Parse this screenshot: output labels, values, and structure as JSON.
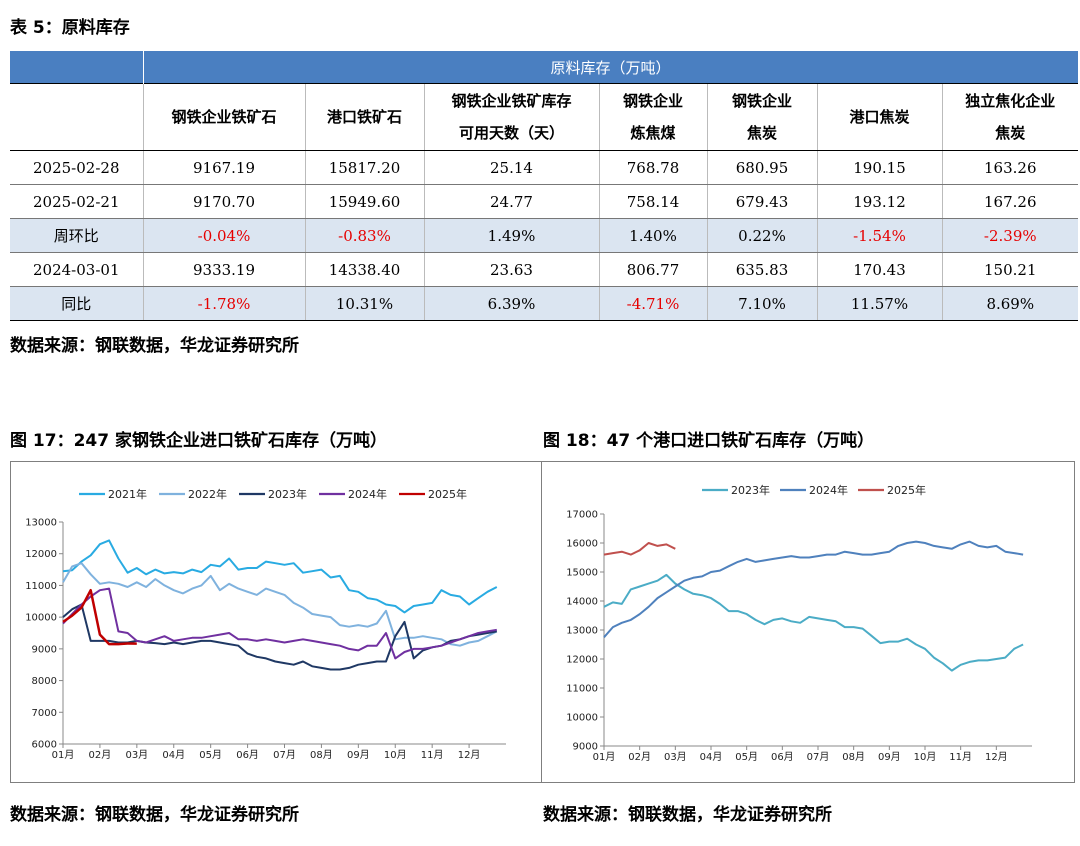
{
  "table_caption": "表 5：原料库存",
  "table": {
    "group_header": "原料库存（万吨）",
    "columns": [
      [
        "钢铁企业铁矿石"
      ],
      [
        "港口铁矿石"
      ],
      [
        "钢铁企业铁矿库存",
        "可用天数（天）"
      ],
      [
        "钢铁企业",
        "炼焦煤"
      ],
      [
        "钢铁企业",
        "焦炭"
      ],
      [
        "港口焦炭"
      ],
      [
        "独立焦化企业",
        "焦炭"
      ]
    ],
    "rows": [
      {
        "label": "2025-02-28",
        "shade": false,
        "values": [
          "9167.19",
          "15817.20",
          "25.14",
          "768.78",
          "680.95",
          "190.15",
          "163.26"
        ]
      },
      {
        "label": "2025-02-21",
        "shade": false,
        "values": [
          "9170.70",
          "15949.60",
          "24.77",
          "758.14",
          "679.43",
          "193.12",
          "167.26"
        ]
      },
      {
        "label": "周环比",
        "shade": true,
        "values": [
          "-0.04%",
          "-0.83%",
          "1.49%",
          "1.40%",
          "0.22%",
          "-1.54%",
          "-2.39%"
        ]
      },
      {
        "label": "2024-03-01",
        "shade": false,
        "values": [
          "9333.19",
          "14338.40",
          "23.63",
          "806.77",
          "635.83",
          "170.43",
          "150.21"
        ]
      },
      {
        "label": "同比",
        "shade": true,
        "values": [
          "-1.78%",
          "10.31%",
          "6.39%",
          "-4.71%",
          "7.10%",
          "11.57%",
          "8.69%"
        ]
      }
    ]
  },
  "table_source": "数据来源：钢联数据，华龙证券研究所",
  "figure17": {
    "caption": "图 17：247 家钢铁企业进口铁矿石库存（万吨）",
    "source": "数据来源：钢联数据，华龙证券研究所"
  },
  "figure18": {
    "caption": "图 18：47 个港口进口铁矿石库存（万吨）",
    "source": "数据来源：钢联数据，华龙证券研究所"
  },
  "chart_data": [
    {
      "type": "line",
      "title": "",
      "xlabel": "",
      "ylabel": "",
      "ylim": [
        6000,
        13000
      ],
      "yticks": [
        6000,
        7000,
        8000,
        9000,
        10000,
        11000,
        12000,
        13000
      ],
      "xticks": [
        "01月",
        "02月",
        "03月",
        "04月",
        "05月",
        "06月",
        "07月",
        "08月",
        "09月",
        "10月",
        "11月",
        "12月"
      ],
      "xrange": [
        0,
        12
      ],
      "grid": false,
      "legend_position": "top",
      "series": [
        {
          "name": "2021年",
          "color": "#29abe2",
          "width": 2,
          "x": [
            0,
            0.25,
            0.5,
            0.75,
            1,
            1.25,
            1.5,
            1.75,
            2,
            2.25,
            2.5,
            2.75,
            3,
            3.25,
            3.5,
            3.75,
            4,
            4.25,
            4.5,
            4.75,
            5,
            5.25,
            5.5,
            5.75,
            6,
            6.25,
            6.5,
            6.75,
            7,
            7.25,
            7.5,
            7.75,
            8,
            8.25,
            8.5,
            8.75,
            9,
            9.25,
            9.5,
            9.75,
            10,
            10.25,
            10.5,
            10.75,
            11,
            11.25,
            11.5,
            11.75
          ],
          "y": [
            11450,
            11480,
            11750,
            11950,
            12300,
            12420,
            11850,
            11400,
            11550,
            11350,
            11500,
            11380,
            11420,
            11380,
            11500,
            11420,
            11650,
            11600,
            11850,
            11500,
            11550,
            11550,
            11750,
            11700,
            11650,
            11700,
            11400,
            11450,
            11500,
            11250,
            11300,
            10850,
            10800,
            10600,
            10550,
            10400,
            10350,
            10150,
            10350,
            10400,
            10450,
            10850,
            10700,
            10650,
            10400,
            10600,
            10800,
            10950
          ]
        },
        {
          "name": "2022年",
          "color": "#7fb2de",
          "width": 2,
          "x": [
            0,
            0.25,
            0.5,
            0.75,
            1,
            1.25,
            1.5,
            1.75,
            2,
            2.25,
            2.5,
            2.75,
            3,
            3.25,
            3.5,
            3.75,
            4,
            4.25,
            4.5,
            4.75,
            5,
            5.25,
            5.5,
            5.75,
            6,
            6.25,
            6.5,
            6.75,
            7,
            7.25,
            7.5,
            7.75,
            8,
            8.25,
            8.5,
            8.75,
            9,
            9.25,
            9.5,
            9.75,
            10,
            10.25,
            10.5,
            10.75,
            11,
            11.25,
            11.5,
            11.75
          ],
          "y": [
            11100,
            11600,
            11700,
            11350,
            11050,
            11100,
            11050,
            10950,
            11100,
            10950,
            11200,
            11000,
            10850,
            10750,
            10900,
            11000,
            11300,
            10850,
            11050,
            10900,
            10800,
            10700,
            10900,
            10800,
            10700,
            10450,
            10300,
            10100,
            10050,
            10000,
            9750,
            9700,
            9750,
            9700,
            9800,
            10200,
            9300,
            9350,
            9350,
            9400,
            9350,
            9300,
            9150,
            9100,
            9200,
            9250,
            9400,
            9550
          ]
        },
        {
          "name": "2023年",
          "color": "#1f3864",
          "width": 2,
          "x": [
            0,
            0.25,
            0.5,
            0.75,
            1,
            1.25,
            1.5,
            1.75,
            2,
            2.25,
            2.5,
            2.75,
            3,
            3.25,
            3.5,
            3.75,
            4,
            4.25,
            4.5,
            4.75,
            5,
            5.25,
            5.5,
            5.75,
            6,
            6.25,
            6.5,
            6.75,
            7,
            7.25,
            7.5,
            7.75,
            8,
            8.25,
            8.5,
            8.75,
            9,
            9.25,
            9.5,
            9.75,
            10,
            10.25,
            10.5,
            10.75,
            11,
            11.25,
            11.5,
            11.75
          ],
          "y": [
            10000,
            10250,
            10400,
            9250,
            9250,
            9250,
            9200,
            9200,
            9250,
            9200,
            9180,
            9150,
            9200,
            9150,
            9200,
            9250,
            9250,
            9200,
            9150,
            9100,
            8850,
            8750,
            8700,
            8600,
            8550,
            8500,
            8600,
            8450,
            8400,
            8350,
            8350,
            8400,
            8500,
            8550,
            8600,
            8600,
            9400,
            9850,
            8700,
            8950,
            9050,
            9100,
            9250,
            9300,
            9400,
            9450,
            9500,
            9550
          ]
        },
        {
          "name": "2024年",
          "color": "#7030a0",
          "width": 2,
          "x": [
            0,
            0.25,
            0.5,
            0.75,
            1,
            1.25,
            1.5,
            1.75,
            2,
            2.25,
            2.5,
            2.75,
            3,
            3.25,
            3.5,
            3.75,
            4,
            4.25,
            4.5,
            4.75,
            5,
            5.25,
            5.5,
            5.75,
            6,
            6.25,
            6.5,
            6.75,
            7,
            7.25,
            7.5,
            7.75,
            8,
            8.25,
            8.5,
            8.75,
            9,
            9.25,
            9.5,
            9.75,
            10,
            10.25,
            10.5,
            10.75,
            11,
            11.25,
            11.5,
            11.75
          ],
          "y": [
            9800,
            10100,
            10400,
            10650,
            10850,
            10900,
            9550,
            9500,
            9250,
            9200,
            9300,
            9400,
            9250,
            9300,
            9350,
            9350,
            9400,
            9450,
            9500,
            9300,
            9300,
            9250,
            9300,
            9250,
            9200,
            9250,
            9300,
            9250,
            9200,
            9150,
            9100,
            9000,
            8950,
            9100,
            9100,
            9500,
            8700,
            8900,
            9000,
            9000,
            9050,
            9100,
            9200,
            9300,
            9400,
            9500,
            9550,
            9600
          ]
        },
        {
          "name": "2025年",
          "color": "#c00000",
          "width": 2.5,
          "x": [
            0,
            0.25,
            0.5,
            0.75,
            1,
            1.25,
            1.5,
            1.75,
            2
          ],
          "y": [
            9850,
            10050,
            10300,
            10850,
            9450,
            9150,
            9150,
            9170,
            9167
          ]
        }
      ]
    },
    {
      "type": "line",
      "title": "",
      "xlabel": "",
      "ylabel": "",
      "ylim": [
        9000,
        17000
      ],
      "yticks": [
        9000,
        10000,
        11000,
        12000,
        13000,
        14000,
        15000,
        16000,
        17000
      ],
      "xticks": [
        "01月",
        "02月",
        "03月",
        "04月",
        "05月",
        "06月",
        "07月",
        "08月",
        "09月",
        "10月",
        "11月",
        "12月"
      ],
      "xrange": [
        0,
        12
      ],
      "grid": false,
      "legend_position": "top",
      "series": [
        {
          "name": "2023年",
          "color": "#4bacc6",
          "width": 2,
          "x": [
            0,
            0.25,
            0.5,
            0.75,
            1,
            1.25,
            1.5,
            1.75,
            2,
            2.25,
            2.5,
            2.75,
            3,
            3.25,
            3.5,
            3.75,
            4,
            4.25,
            4.5,
            4.75,
            5,
            5.25,
            5.5,
            5.75,
            6,
            6.25,
            6.5,
            6.75,
            7,
            7.25,
            7.5,
            7.75,
            8,
            8.25,
            8.5,
            8.75,
            9,
            9.25,
            9.5,
            9.75,
            10,
            10.25,
            10.5,
            10.75,
            11,
            11.25,
            11.5,
            11.75
          ],
          "y": [
            13800,
            13950,
            13900,
            14400,
            14500,
            14600,
            14700,
            14900,
            14600,
            14400,
            14250,
            14200,
            14100,
            13900,
            13650,
            13650,
            13550,
            13350,
            13200,
            13350,
            13400,
            13300,
            13250,
            13450,
            13400,
            13350,
            13300,
            13100,
            13100,
            13050,
            12800,
            12550,
            12600,
            12600,
            12700,
            12500,
            12350,
            12050,
            11850,
            11600,
            11800,
            11900,
            11950,
            11950,
            12000,
            12050,
            12350,
            12500
          ]
        },
        {
          "name": "2024年",
          "color": "#4f81bd",
          "width": 2,
          "x": [
            0,
            0.25,
            0.5,
            0.75,
            1,
            1.25,
            1.5,
            1.75,
            2,
            2.25,
            2.5,
            2.75,
            3,
            3.25,
            3.5,
            3.75,
            4,
            4.25,
            4.5,
            4.75,
            5,
            5.25,
            5.5,
            5.75,
            6,
            6.25,
            6.5,
            6.75,
            7,
            7.25,
            7.5,
            7.75,
            8,
            8.25,
            8.5,
            8.75,
            9,
            9.25,
            9.5,
            9.75,
            10,
            10.25,
            10.5,
            10.75,
            11,
            11.25,
            11.5,
            11.75
          ],
          "y": [
            12750,
            13100,
            13250,
            13350,
            13550,
            13800,
            14100,
            14300,
            14500,
            14700,
            14800,
            14850,
            15000,
            15050,
            15200,
            15350,
            15450,
            15350,
            15400,
            15450,
            15500,
            15550,
            15500,
            15500,
            15550,
            15600,
            15600,
            15700,
            15650,
            15600,
            15600,
            15650,
            15700,
            15900,
            16000,
            16050,
            16000,
            15900,
            15850,
            15800,
            15950,
            16050,
            15900,
            15850,
            15900,
            15700,
            15650,
            15600
          ]
        },
        {
          "name": "2025年",
          "color": "#c0504d",
          "width": 2,
          "x": [
            0,
            0.25,
            0.5,
            0.75,
            1,
            1.25,
            1.5,
            1.75,
            2
          ],
          "y": [
            15600,
            15650,
            15700,
            15600,
            15750,
            16000,
            15900,
            15950,
            15800
          ]
        }
      ]
    }
  ]
}
